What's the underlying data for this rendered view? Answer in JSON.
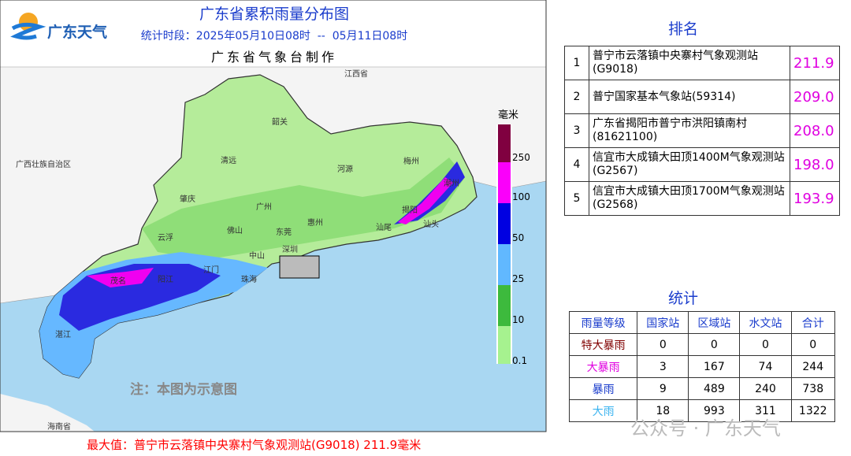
{
  "header": {
    "logo": "广东天气",
    "title": "广东省累积雨量分布图",
    "period": "统计时段：2025年05月10日08时  --  05月11日08时",
    "producer": "广东省气象台制作"
  },
  "map": {
    "labels": [
      "江西省",
      "广西壮族自治区",
      "海南省",
      "韶关",
      "清远",
      "河源",
      "梅州",
      "肇庆",
      "广州",
      "惠州",
      "云浮",
      "佛山",
      "东莞",
      "汕尾",
      "揭阳",
      "潮州",
      "汕头",
      "阳江",
      "茂名",
      "江门",
      "中山",
      "珠海",
      "深圳",
      "湛江"
    ]
  },
  "legend": {
    "unit": "毫米",
    "ticks": [
      "0.1",
      "10",
      "25",
      "50",
      "100",
      "250"
    ]
  },
  "note": "注：本图为示意图",
  "max_value": "最大值：普宁市云落镇中央寨村气象观测站(G9018) 211.9毫米",
  "ranking": {
    "title": "排名",
    "rows": [
      [
        "1",
        "普宁市云落镇中央寨村气象观测站(G9018)",
        "211.9"
      ],
      [
        "2",
        "普宁国家基本气象站(59314)",
        "209.0"
      ],
      [
        "3",
        "广东省揭阳市普宁市洪阳镇南村(81621100)",
        "208.0"
      ],
      [
        "4",
        "信宜市大成镇大田顶1400M气象观测站(G2567)",
        "198.0"
      ],
      [
        "5",
        "信宜市大成镇大田顶1700M气象观测站(G2568)",
        "193.9"
      ]
    ]
  },
  "stats": {
    "title": "统计",
    "header": [
      "雨量等级",
      "国家站",
      "区域站",
      "水文站",
      "合计"
    ],
    "rows": [
      [
        "特大暴雨",
        "0",
        "0",
        "0",
        "0"
      ],
      [
        "大暴雨",
        "3",
        "167",
        "74",
        "244"
      ],
      [
        "暴雨",
        "9",
        "489",
        "240",
        "738"
      ],
      [
        "大雨",
        "18",
        "993",
        "311",
        "1322"
      ]
    ]
  },
  "watermark": "公众号 · 广东天气"
}
